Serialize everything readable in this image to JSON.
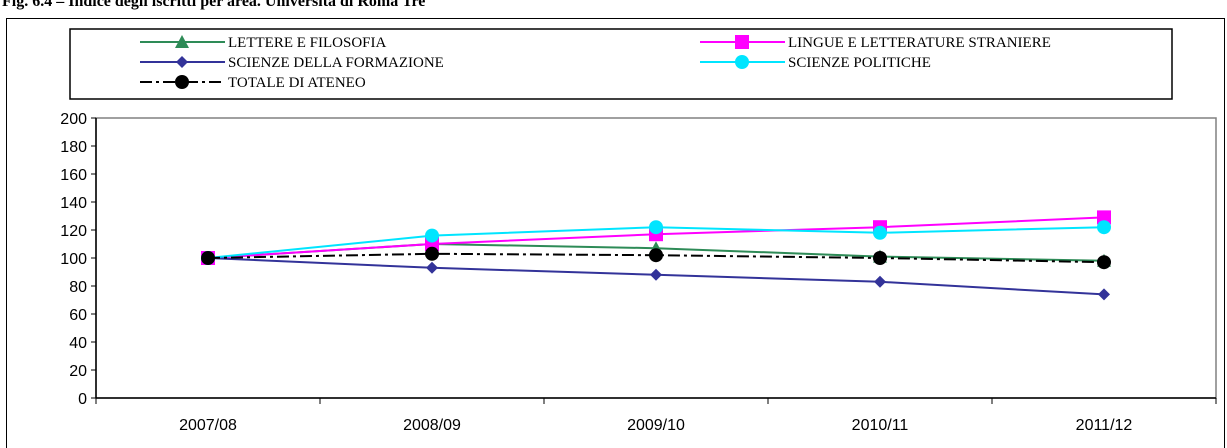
{
  "figure": {
    "title": "Fig. 6.4 – Indice degli iscritti per area. Università di Roma Tre"
  },
  "chart_data": {
    "type": "line",
    "categories": [
      "2007/08",
      "2008/09",
      "2009/10",
      "2010/11",
      "2011/12"
    ],
    "ylim": [
      0,
      200
    ],
    "yticks": [
      0,
      20,
      40,
      60,
      80,
      100,
      120,
      140,
      160,
      180,
      200
    ],
    "grid": false,
    "legend_position": "top",
    "series": [
      {
        "name": "LETTERE E FILOSOFIA",
        "color": "#2e8b57",
        "marker": "triangle",
        "dash": "solid",
        "values": [
          100,
          110,
          107,
          101,
          98
        ]
      },
      {
        "name": "LINGUE E LETTERATURE STRANIERE",
        "color": "#ff00ff",
        "marker": "square",
        "dash": "solid",
        "values": [
          100,
          110,
          117,
          122,
          129
        ]
      },
      {
        "name": "SCIENZE DELLA FORMAZIONE",
        "color": "#333399",
        "marker": "diamond",
        "dash": "solid",
        "values": [
          100,
          93,
          88,
          83,
          74
        ]
      },
      {
        "name": "SCIENZE POLITICHE",
        "color": "#00e5ff",
        "marker": "circle",
        "dash": "solid",
        "values": [
          100,
          116,
          122,
          118,
          122
        ]
      },
      {
        "name": "TOTALE DI ATENEO",
        "color": "#000000",
        "marker": "circle",
        "dash": "dashdot",
        "values": [
          100,
          103,
          102,
          100,
          97
        ]
      }
    ]
  }
}
